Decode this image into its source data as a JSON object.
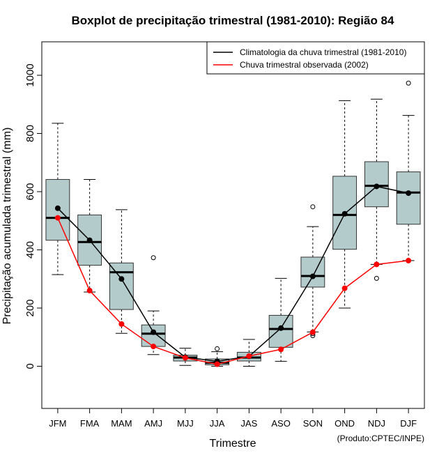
{
  "chart_data": {
    "type": "boxplot",
    "title": "Boxplot de precipitação trimestral (1981-2010): Região 84",
    "xlabel": "Trimestre",
    "ylabel": "Precipitação acumulada trimestral (mm)",
    "credit": "(Produto:CPTEC/INPE)",
    "ylim": [
      -145,
      1115
    ],
    "yticks": [
      0,
      200,
      400,
      600,
      800,
      1000
    ],
    "categories": [
      "JFM",
      "FMA",
      "MAM",
      "AMJ",
      "MJJ",
      "JJA",
      "JAS",
      "ASO",
      "SON",
      "OND",
      "NDJ",
      "DJF"
    ],
    "boxes": [
      {
        "whisker_low": 315,
        "q1": 433,
        "median": 510,
        "q3": 642,
        "whisker_high": 835,
        "outliers": []
      },
      {
        "whisker_low": 255,
        "q1": 347,
        "median": 427,
        "q3": 520,
        "whisker_high": 642,
        "outliers": []
      },
      {
        "whisker_low": 113,
        "q1": 195,
        "median": 323,
        "q3": 355,
        "whisker_high": 538,
        "outliers": []
      },
      {
        "whisker_low": 40,
        "q1": 68,
        "median": 112,
        "q3": 142,
        "whisker_high": 190,
        "outliers": [
          373
        ]
      },
      {
        "whisker_low": 3,
        "q1": 18,
        "median": 30,
        "q3": 38,
        "whisker_high": 62,
        "outliers": []
      },
      {
        "whisker_low": 0,
        "q1": 5,
        "median": 12,
        "q3": 25,
        "whisker_high": 50,
        "outliers": [
          60
        ]
      },
      {
        "whisker_low": 0,
        "q1": 18,
        "median": 30,
        "q3": 48,
        "whisker_high": 92,
        "outliers": []
      },
      {
        "whisker_low": 17,
        "q1": 65,
        "median": 128,
        "q3": 175,
        "whisker_high": 302,
        "outliers": []
      },
      {
        "whisker_low": 118,
        "q1": 272,
        "median": 310,
        "q3": 375,
        "whisker_high": 480,
        "outliers": [
          548,
          112,
          105
        ]
      },
      {
        "whisker_low": 200,
        "q1": 402,
        "median": 520,
        "q3": 653,
        "whisker_high": 913,
        "outliers": []
      },
      {
        "whisker_low": 350,
        "q1": 548,
        "median": 620,
        "q3": 703,
        "whisker_high": 918,
        "outliers": [
          302
        ]
      },
      {
        "whisker_low": 363,
        "q1": 488,
        "median": 597,
        "q3": 668,
        "whisker_high": 862,
        "outliers": [
          973
        ]
      }
    ],
    "series": [
      {
        "name": "Climatologia da chuva trimestral (1981-2010)",
        "color": "#000000",
        "values": [
          543,
          433,
          300,
          117,
          31,
          17,
          34,
          131,
          309,
          524,
          618,
          595
        ]
      },
      {
        "name": "Chuva trimestral observada (2002)",
        "color": "#ff0000",
        "values": [
          510,
          260,
          145,
          68,
          29,
          7,
          35,
          58,
          117,
          268,
          350,
          363
        ]
      }
    ],
    "box_color": "#b4cbcb",
    "legend_position": "top-right"
  }
}
